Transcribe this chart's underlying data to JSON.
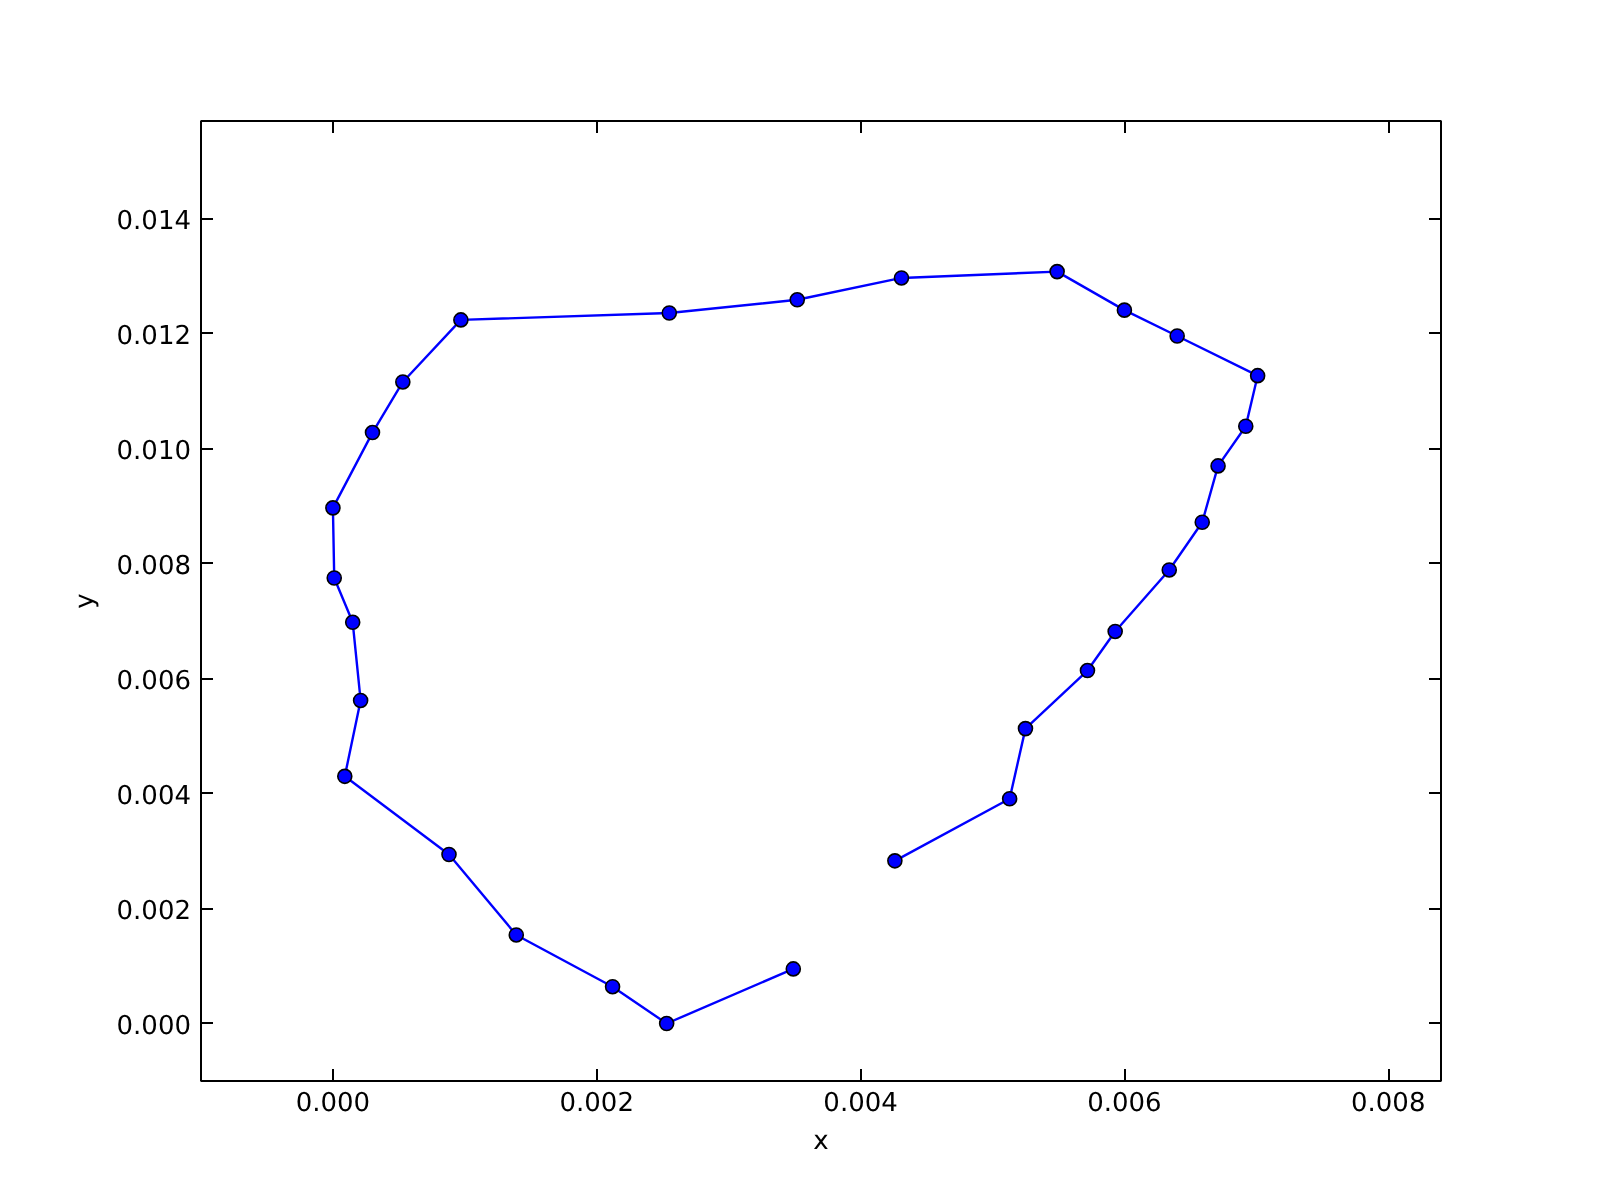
{
  "chart_data": {
    "type": "line",
    "xlabel": "x",
    "ylabel": "y",
    "marker": "circle",
    "line_style": "solid",
    "grid": false,
    "xlim": [
      -0.001,
      0.0084
    ],
    "ylim": [
      -0.001,
      0.0157
    ],
    "xticks": [
      {
        "value": 0,
        "label": "0.000"
      },
      {
        "value": 0.002,
        "label": "0.002"
      },
      {
        "value": 0.004,
        "label": "0.004"
      },
      {
        "value": 0.006,
        "label": "0.006"
      },
      {
        "value": 0.008,
        "label": "0.008"
      }
    ],
    "yticks": [
      {
        "value": 0,
        "label": "0.000"
      },
      {
        "value": 0.002,
        "label": "0.002"
      },
      {
        "value": 0.004,
        "label": "0.004"
      },
      {
        "value": 0.006,
        "label": "0.006"
      },
      {
        "value": 0.008,
        "label": "0.008"
      },
      {
        "value": 0.01,
        "label": "0.010"
      },
      {
        "value": 0.012,
        "label": "0.012"
      },
      {
        "value": 0.014,
        "label": "0.014"
      }
    ],
    "series": [
      {
        "color": "#0000ff",
        "x": [
          0.00349,
          0.00253,
          0.00212,
          0.00139,
          0.00088,
          9e-05,
          0.00021,
          0.00015,
          1e-05,
          0.0,
          0.0003,
          0.00053,
          0.00097,
          0.00255,
          0.00352,
          0.00431,
          0.00549,
          0.006,
          0.0064,
          0.00701,
          0.00692,
          0.00671,
          0.00659,
          0.00634,
          0.00593,
          0.00572,
          0.00525,
          0.00513,
          0.00426
        ],
        "values": [
          0.00095,
          0.0,
          0.00064,
          0.00154,
          0.00294,
          0.0043,
          0.00562,
          0.00698,
          0.00775,
          0.00897,
          0.01028,
          0.01116,
          0.01224,
          0.01236,
          0.01259,
          0.01297,
          0.01308,
          0.01241,
          0.01196,
          0.01127,
          0.01039,
          0.0097,
          0.00872,
          0.00789,
          0.00682,
          0.00614,
          0.00513,
          0.00391,
          0.00283
        ]
      }
    ]
  }
}
